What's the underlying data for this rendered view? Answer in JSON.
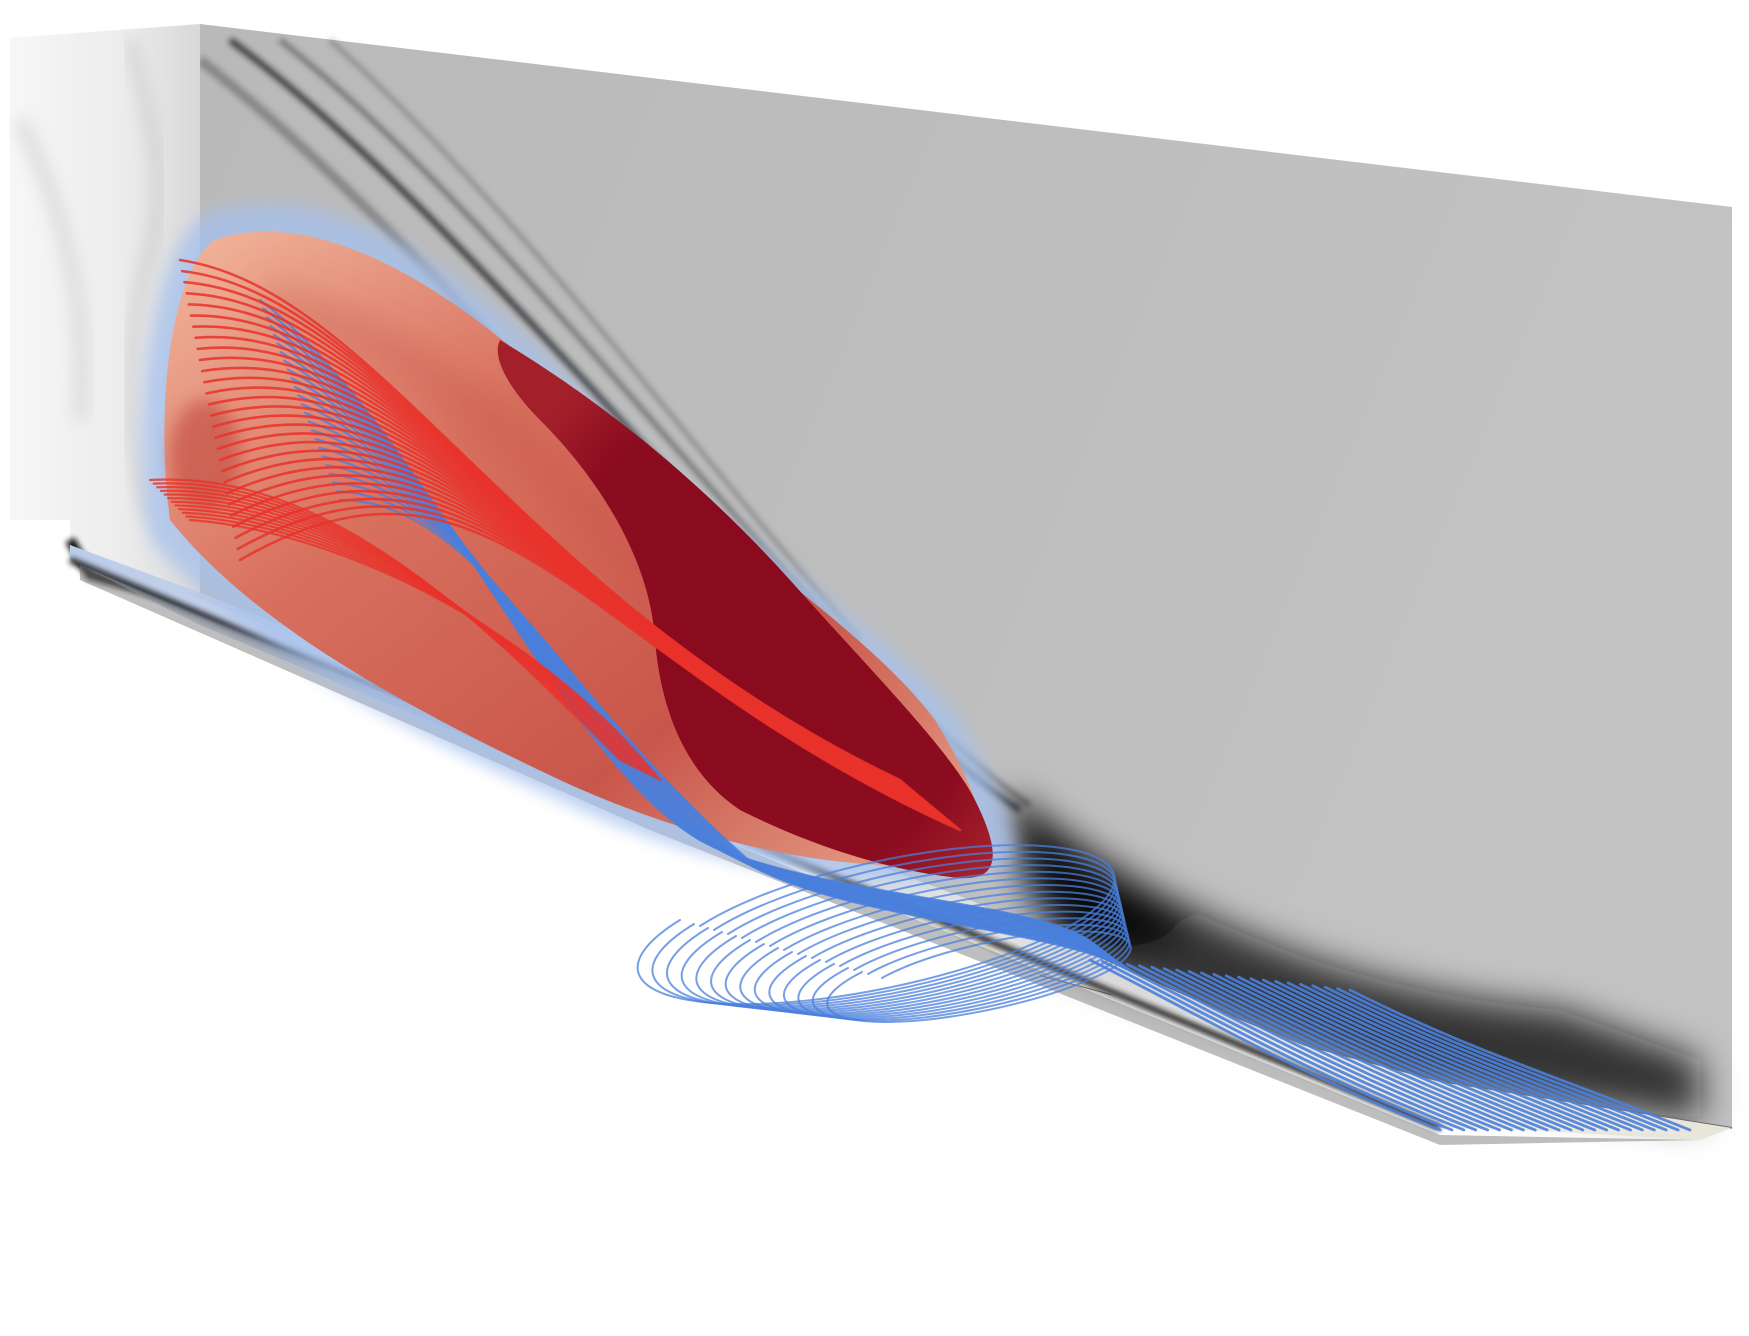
{
  "scene": {
    "background": "#ffffff",
    "side_wall_color": "#bdbdbd",
    "inlet_wall_color": "#f1f1f1",
    "floor_color": "#e9e7df",
    "shock_color": "#1a1a1a",
    "jet_core_color": "#8b0a1e",
    "jet_mid_color": "#d9695a",
    "jet_outer_color": "#f2c1a6",
    "jet_halo_color": "#a9c3ee",
    "red_streamline_color": "#e8322b",
    "blue_streamline_color": "#4a7fdc"
  },
  "streamlines": {
    "red_count": 28,
    "blue_count": 24,
    "floor_count": 22
  }
}
